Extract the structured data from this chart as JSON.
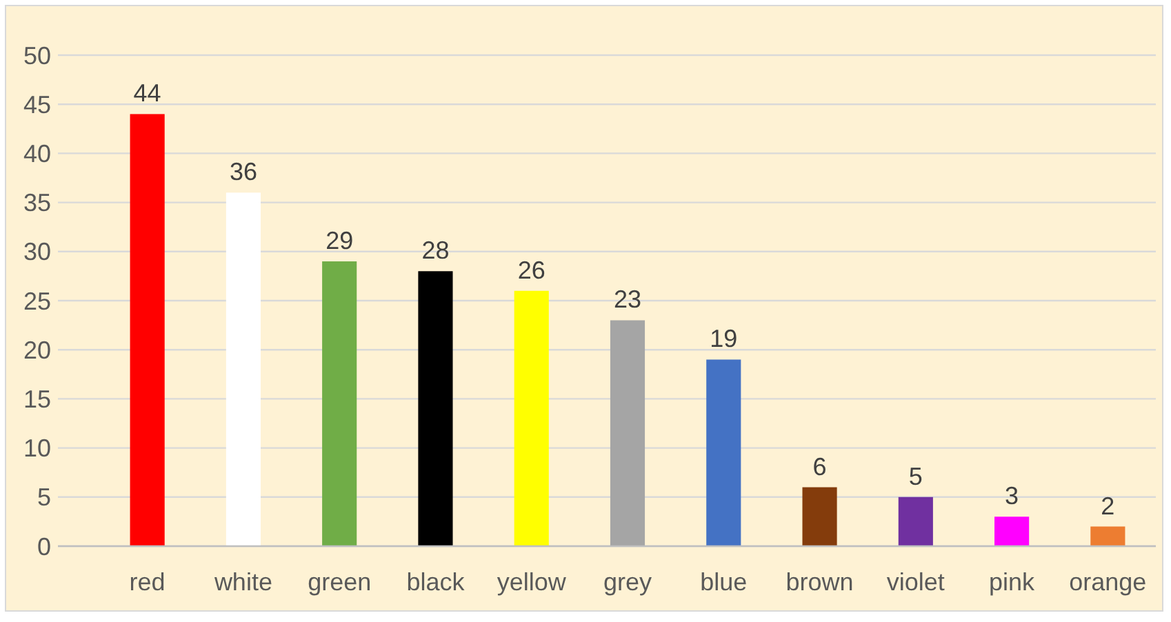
{
  "chart_data": {
    "type": "bar",
    "categories": [
      "red",
      "white",
      "green",
      "black",
      "yellow",
      "grey",
      "blue",
      "brown",
      "violet",
      "pink",
      "orange"
    ],
    "values": [
      44,
      36,
      29,
      28,
      26,
      23,
      19,
      6,
      5,
      3,
      2
    ],
    "colors": [
      "#ff0000",
      "#ffffff",
      "#70ad47",
      "#000000",
      "#ffff00",
      "#a5a5a5",
      "#4472c4",
      "#843c0c",
      "#7030a0",
      "#ff00ff",
      "#ed7d31"
    ],
    "ylim": [
      0,
      50
    ],
    "yticks": [
      0,
      5,
      10,
      15,
      20,
      25,
      30,
      35,
      40,
      45,
      50
    ],
    "grid": "y",
    "data_labels": true
  }
}
